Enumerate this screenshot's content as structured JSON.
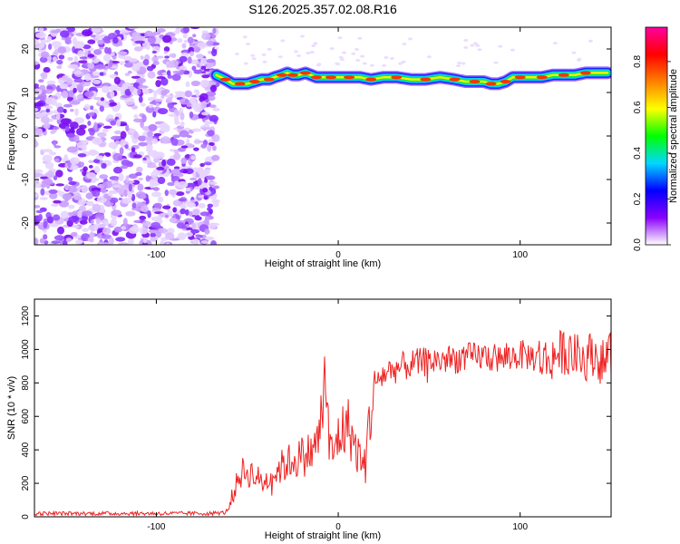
{
  "chart_data": [
    {
      "type": "heatmap",
      "title": "S126.2025.357.02.08.R16",
      "xlabel": "Height of straight line (km)",
      "ylabel": "Frequency (Hz)",
      "xlim": [
        -167,
        150
      ],
      "ylim": [
        -25,
        25
      ],
      "xticks": [
        -100,
        0,
        100
      ],
      "yticks": [
        -20,
        -10,
        0,
        10,
        20
      ],
      "noise_region_x": [
        -167,
        -67
      ],
      "signal_region_x": [
        -67,
        150
      ],
      "signal_track": {
        "x": [
          -67,
          -62,
          -58,
          -54,
          -50,
          -46,
          -42,
          -38,
          -35,
          -31,
          -28,
          -25,
          -22,
          -18,
          -15,
          -12,
          -8,
          -4,
          0,
          6,
          12,
          18,
          25,
          32,
          40,
          48,
          56,
          64,
          70,
          75,
          80,
          84,
          88,
          92,
          96,
          100,
          106,
          112,
          118,
          124,
          130,
          136,
          142,
          148
        ],
        "y": [
          14,
          13,
          12,
          12,
          12,
          12.5,
          13,
          13,
          13.5,
          14,
          14.5,
          14,
          14,
          14.5,
          14,
          13.5,
          13.5,
          13.5,
          13.5,
          13.5,
          13.5,
          13,
          13.5,
          13.5,
          13,
          13,
          13.5,
          13,
          12.5,
          12.5,
          12.5,
          12,
          12,
          12.5,
          13.5,
          13.5,
          13.5,
          13.5,
          14,
          14,
          14,
          14.5,
          14.5,
          14.5
        ]
      },
      "colorbar": {
        "label": "Normalized spectral amplitude",
        "range": [
          0,
          0.95
        ],
        "ticks": [
          "0.0",
          "0.2",
          "0.4",
          "0.6",
          "0.8"
        ],
        "tick_values": [
          0,
          0.2,
          0.4,
          0.6,
          0.8
        ],
        "colors": [
          "#ffffff",
          "#8a00ff",
          "#0000ff",
          "#00d8ff",
          "#00ff00",
          "#ffff00",
          "#ff8000",
          "#ff0000",
          "#ff00a0"
        ]
      }
    },
    {
      "type": "line",
      "title": "",
      "xlabel": "Height of straight line (km)",
      "ylabel": "SNR (10 * v/v)",
      "xlim": [
        -167,
        150
      ],
      "ylim": [
        0,
        1300
      ],
      "xticks": [
        -100,
        0,
        100
      ],
      "yticks": [
        0,
        200,
        400,
        600,
        800,
        1000,
        1200
      ],
      "series": [
        {
          "name": "SNR",
          "color": "#ee2222",
          "x": [
            -167,
            -140,
            -100,
            -70,
            -62,
            -58,
            -55,
            -52,
            -48,
            -45,
            -42,
            -38,
            -35,
            -30,
            -25,
            -20,
            -16,
            -12,
            -9,
            -7,
            -5,
            -3,
            0,
            3,
            6,
            9,
            12,
            15,
            17,
            20,
            25,
            30,
            40,
            50,
            60,
            70,
            80,
            90,
            100,
            105,
            110,
            115,
            120,
            125,
            130,
            135,
            140,
            145,
            150
          ],
          "values": [
            20,
            20,
            20,
            20,
            25,
            100,
            240,
            270,
            260,
            240,
            200,
            230,
            260,
            310,
            340,
            360,
            380,
            420,
            600,
            880,
            420,
            360,
            480,
            520,
            540,
            420,
            350,
            300,
            580,
            800,
            850,
            880,
            910,
            930,
            940,
            950,
            960,
            940,
            970,
            960,
            950,
            930,
            970,
            990,
            960,
            940,
            980,
            920,
            960
          ]
        }
      ]
    }
  ]
}
